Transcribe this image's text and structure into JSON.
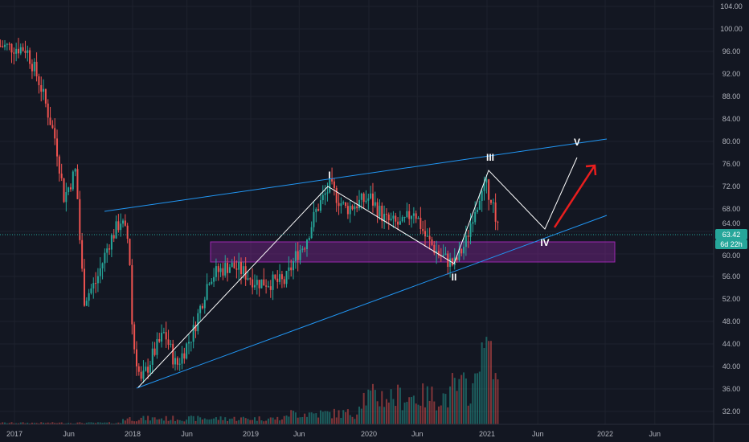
{
  "chart_data": {
    "type": "candlestick",
    "title": "",
    "y_ticks": [
      "104.00",
      "100.00",
      "96.00",
      "92.00",
      "88.00",
      "84.00",
      "80.00",
      "76.00",
      "72.00",
      "68.00",
      "64.00",
      "60.00",
      "56.00",
      "52.00",
      "48.00",
      "44.00",
      "40.00",
      "36.00",
      "32.00"
    ],
    "y_tick_values": [
      104,
      100,
      96,
      92,
      88,
      84,
      80,
      76,
      72,
      68,
      64,
      60,
      56,
      52,
      48,
      44,
      40,
      36,
      32
    ],
    "x_ticks": [
      {
        "label": "2017",
        "t": 2017.0
      },
      {
        "label": "Jun",
        "t": 2017.46
      },
      {
        "label": "2018",
        "t": 2018.0
      },
      {
        "label": "Jun",
        "t": 2018.46
      },
      {
        "label": "2019",
        "t": 2019.0
      },
      {
        "label": "Jun",
        "t": 2019.41
      },
      {
        "label": "2020",
        "t": 2020.0
      },
      {
        "label": "Jun",
        "t": 2020.41
      },
      {
        "label": "2021",
        "t": 2021.0
      },
      {
        "label": "Jun",
        "t": 2021.43
      },
      {
        "label": "2022",
        "t": 2022.0
      },
      {
        "label": "Jun",
        "t": 2022.42
      }
    ],
    "ylim": [
      30,
      105
    ],
    "price_path": [
      [
        2016.88,
        97
      ],
      [
        2017.1,
        96.5
      ],
      [
        2017.22,
        90
      ],
      [
        2017.35,
        80
      ],
      [
        2017.42,
        70
      ],
      [
        2017.52,
        75
      ],
      [
        2017.56,
        60
      ],
      [
        2017.59,
        52
      ],
      [
        2017.69,
        55
      ],
      [
        2017.8,
        62
      ],
      [
        2017.9,
        66
      ],
      [
        2017.97,
        62
      ],
      [
        2018.0,
        45
      ],
      [
        2018.07,
        37
      ],
      [
        2018.17,
        42
      ],
      [
        2018.27,
        46
      ],
      [
        2018.37,
        40
      ],
      [
        2018.51,
        46
      ],
      [
        2018.65,
        56
      ],
      [
        2018.82,
        58
      ],
      [
        2018.92,
        57
      ],
      [
        2019.05,
        55
      ],
      [
        2019.29,
        55
      ],
      [
        2019.39,
        60
      ],
      [
        2019.46,
        62
      ],
      [
        2019.56,
        68
      ],
      [
        2019.67,
        72
      ],
      [
        2019.8,
        68
      ],
      [
        2020.01,
        70
      ],
      [
        2020.14,
        66
      ],
      [
        2020.28,
        65
      ],
      [
        2020.38,
        68
      ],
      [
        2020.48,
        63
      ],
      [
        2020.59,
        60
      ],
      [
        2020.72,
        58
      ],
      [
        2020.82,
        62
      ],
      [
        2020.89,
        68
      ],
      [
        2020.99,
        72
      ],
      [
        2021.04,
        70
      ],
      [
        2021.1,
        63.4
      ]
    ],
    "last_price": "63.42",
    "countdown": "6d 22h",
    "wave_labels": [
      "I",
      "II",
      "III",
      "IV",
      "V"
    ],
    "colors": {
      "up": "#26a69a",
      "down": "#ef5350",
      "trend": "#2196f3",
      "zone": "#9c27b0",
      "arrow": "#e91e1e"
    }
  }
}
